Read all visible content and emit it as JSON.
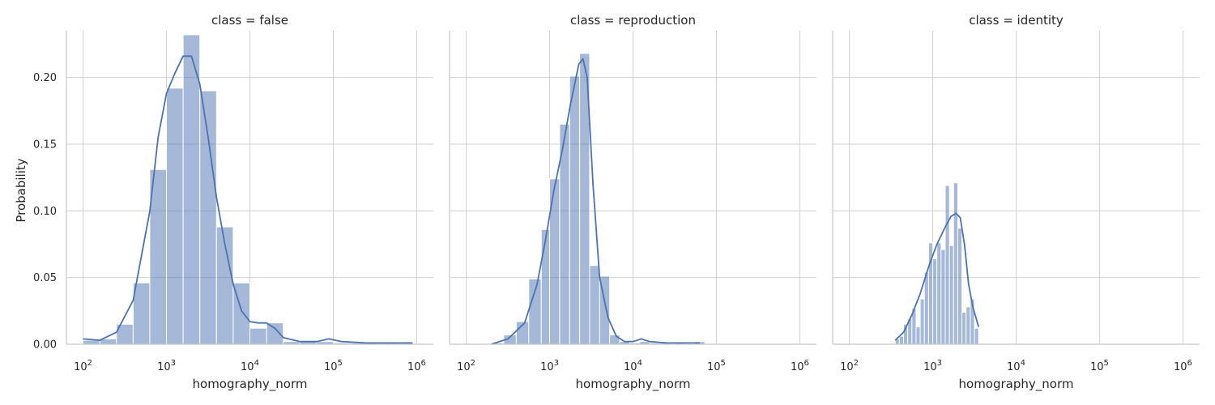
{
  "chart_data": {
    "type": "histogram",
    "ylabel": "Probability",
    "xlabel": "homography_norm",
    "x_scale": "log",
    "x_tick_labels": [
      "10^2",
      "10^3",
      "10^4",
      "10^5",
      "10^6"
    ],
    "y_ticks": [
      "0.00",
      "0.05",
      "0.10",
      "0.15",
      "0.20"
    ],
    "ylim": [
      0,
      0.235
    ],
    "xlim_log10": [
      1.8,
      6.2
    ],
    "grid": true,
    "colors": {
      "bar": "#4c72b0",
      "bar_opacity": 0.5,
      "kde": "#4c72b0",
      "grid": "#d0d0d0",
      "axis": "#c8c8c8"
    },
    "panels": [
      {
        "title": "class = false",
        "bins_log10": [
          [
            2.0,
            2.2,
            0.003
          ],
          [
            2.2,
            2.4,
            0.004
          ],
          [
            2.4,
            2.6,
            0.015
          ],
          [
            2.6,
            2.8,
            0.046
          ],
          [
            2.8,
            3.0,
            0.131
          ],
          [
            3.0,
            3.2,
            0.192
          ],
          [
            3.2,
            3.4,
            0.232
          ],
          [
            3.4,
            3.6,
            0.19
          ],
          [
            3.6,
            3.8,
            0.088
          ],
          [
            3.8,
            4.0,
            0.046
          ],
          [
            4.0,
            4.2,
            0.012
          ],
          [
            4.2,
            4.4,
            0.016
          ],
          [
            4.4,
            4.6,
            0.002
          ],
          [
            4.6,
            4.8,
            0.002
          ],
          [
            4.8,
            5.0,
            0.002
          ],
          [
            5.0,
            5.2,
            0.001
          ],
          [
            5.2,
            5.4,
            0.001
          ],
          [
            5.4,
            5.6,
            0.001
          ],
          [
            5.6,
            5.8,
            0.001
          ],
          [
            5.8,
            5.95,
            0.001
          ]
        ],
        "kde": [
          [
            2.0,
            0.004
          ],
          [
            2.2,
            0.003
          ],
          [
            2.4,
            0.009
          ],
          [
            2.6,
            0.033
          ],
          [
            2.8,
            0.1
          ],
          [
            2.9,
            0.155
          ],
          [
            3.0,
            0.188
          ],
          [
            3.1,
            0.203
          ],
          [
            3.2,
            0.216
          ],
          [
            3.3,
            0.216
          ],
          [
            3.4,
            0.195
          ],
          [
            3.5,
            0.155
          ],
          [
            3.6,
            0.11
          ],
          [
            3.7,
            0.075
          ],
          [
            3.8,
            0.045
          ],
          [
            3.9,
            0.025
          ],
          [
            4.0,
            0.017
          ],
          [
            4.1,
            0.016
          ],
          [
            4.2,
            0.016
          ],
          [
            4.3,
            0.012
          ],
          [
            4.4,
            0.005
          ],
          [
            4.6,
            0.002
          ],
          [
            4.8,
            0.002
          ],
          [
            4.95,
            0.004
          ],
          [
            5.1,
            0.002
          ],
          [
            5.4,
            0.001
          ],
          [
            5.7,
            0.001
          ],
          [
            5.95,
            0.001
          ]
        ]
      },
      {
        "title": "class = reproduction",
        "bins_log10": [
          [
            2.3,
            2.45,
            0.001
          ],
          [
            2.45,
            2.6,
            0.007
          ],
          [
            2.6,
            2.75,
            0.017
          ],
          [
            2.75,
            2.9,
            0.049
          ],
          [
            2.9,
            3.0,
            0.086
          ],
          [
            3.0,
            3.12,
            0.124
          ],
          [
            3.12,
            3.24,
            0.165
          ],
          [
            3.24,
            3.36,
            0.201
          ],
          [
            3.36,
            3.48,
            0.218
          ],
          [
            3.48,
            3.6,
            0.059
          ],
          [
            3.6,
            3.72,
            0.051
          ],
          [
            3.72,
            3.84,
            0.007
          ],
          [
            3.84,
            3.96,
            0.002
          ],
          [
            3.96,
            4.08,
            0.001
          ],
          [
            4.08,
            4.2,
            0.002
          ],
          [
            4.2,
            4.32,
            0.001
          ],
          [
            4.32,
            4.44,
            0.001
          ],
          [
            4.5,
            4.62,
            0.001
          ],
          [
            4.74,
            4.86,
            0.002
          ]
        ],
        "kde": [
          [
            2.3,
            0.0
          ],
          [
            2.5,
            0.004
          ],
          [
            2.7,
            0.016
          ],
          [
            2.85,
            0.045
          ],
          [
            2.95,
            0.078
          ],
          [
            3.05,
            0.115
          ],
          [
            3.15,
            0.145
          ],
          [
            3.25,
            0.18
          ],
          [
            3.35,
            0.21
          ],
          [
            3.4,
            0.214
          ],
          [
            3.45,
            0.2
          ],
          [
            3.52,
            0.12
          ],
          [
            3.6,
            0.05
          ],
          [
            3.7,
            0.02
          ],
          [
            3.8,
            0.006
          ],
          [
            3.9,
            0.002
          ],
          [
            4.0,
            0.002
          ],
          [
            4.1,
            0.004
          ],
          [
            4.2,
            0.002
          ],
          [
            4.4,
            0.001
          ],
          [
            4.6,
            0.001
          ],
          [
            4.8,
            0.001
          ]
        ]
      },
      {
        "title": "class = identity",
        "bins_log10": [
          [
            2.55,
            2.6,
            0.004
          ],
          [
            2.6,
            2.65,
            0.006
          ],
          [
            2.65,
            2.7,
            0.015
          ],
          [
            2.7,
            2.75,
            0.019
          ],
          [
            2.75,
            2.8,
            0.027
          ],
          [
            2.8,
            2.85,
            0.013
          ],
          [
            2.85,
            2.9,
            0.034
          ],
          [
            2.9,
            2.95,
            0.054
          ],
          [
            2.95,
            3.0,
            0.076
          ],
          [
            3.0,
            3.05,
            0.064
          ],
          [
            3.05,
            3.1,
            0.076
          ],
          [
            3.1,
            3.15,
            0.071
          ],
          [
            3.15,
            3.2,
            0.119
          ],
          [
            3.2,
            3.25,
            0.074
          ],
          [
            3.25,
            3.3,
            0.121
          ],
          [
            3.3,
            3.35,
            0.087
          ],
          [
            3.35,
            3.4,
            0.024
          ],
          [
            3.4,
            3.45,
            0.028
          ],
          [
            3.45,
            3.5,
            0.034
          ],
          [
            3.5,
            3.55,
            0.012
          ]
        ],
        "kde": [
          [
            2.55,
            0.003
          ],
          [
            2.65,
            0.009
          ],
          [
            2.75,
            0.022
          ],
          [
            2.85,
            0.038
          ],
          [
            2.95,
            0.058
          ],
          [
            3.05,
            0.075
          ],
          [
            3.15,
            0.088
          ],
          [
            3.22,
            0.096
          ],
          [
            3.28,
            0.098
          ],
          [
            3.33,
            0.095
          ],
          [
            3.38,
            0.075
          ],
          [
            3.43,
            0.045
          ],
          [
            3.48,
            0.028
          ],
          [
            3.55,
            0.013
          ]
        ]
      }
    ]
  }
}
